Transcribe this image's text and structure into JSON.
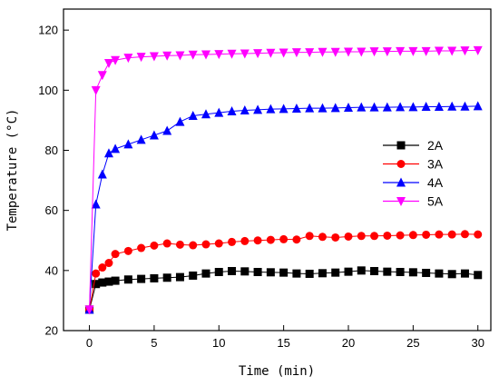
{
  "chart_data": {
    "type": "line",
    "title": "",
    "xlabel": "Time (min)",
    "ylabel": "Temperature (°C)",
    "xlim": [
      -2,
      31
    ],
    "ylim": [
      20,
      127
    ],
    "xticks": [
      0,
      5,
      10,
      15,
      20,
      25,
      30
    ],
    "yticks": [
      20,
      40,
      60,
      80,
      100,
      120
    ],
    "grid": false,
    "legend_position": "right-center",
    "series": [
      {
        "name": "2A",
        "color": "#000000",
        "marker": "square",
        "x": [
          0,
          0.5,
          1,
          1.5,
          2,
          3,
          4,
          5,
          6,
          7,
          8,
          9,
          10,
          11,
          12,
          13,
          14,
          15,
          16,
          17,
          18,
          19,
          20,
          21,
          22,
          23,
          24,
          25,
          26,
          27,
          28,
          29,
          30
        ],
        "y": [
          27,
          35.5,
          36,
          36.3,
          36.6,
          37,
          37.2,
          37.4,
          37.6,
          37.8,
          38.3,
          39,
          39.5,
          39.8,
          39.7,
          39.5,
          39.4,
          39.3,
          39,
          38.9,
          39.1,
          39.3,
          39.6,
          40,
          39.8,
          39.6,
          39.5,
          39.4,
          39.2,
          39,
          38.8,
          39,
          38.5
        ]
      },
      {
        "name": "3A",
        "color": "#ff0000",
        "marker": "circle",
        "x": [
          0,
          0.5,
          1,
          1.5,
          2,
          3,
          4,
          5,
          6,
          7,
          8,
          9,
          10,
          11,
          12,
          13,
          14,
          15,
          16,
          17,
          18,
          19,
          20,
          21,
          22,
          23,
          24,
          25,
          26,
          27,
          28,
          29,
          30
        ],
        "y": [
          27,
          39,
          41,
          42.5,
          45.5,
          46.5,
          47.5,
          48.3,
          49,
          48.6,
          48.4,
          48.7,
          49,
          49.5,
          49.8,
          50,
          50.2,
          50.4,
          50.3,
          51.5,
          51.2,
          51,
          51.3,
          51.5,
          51.5,
          51.6,
          51.7,
          51.8,
          51.9,
          52,
          52,
          52.1,
          52
        ]
      },
      {
        "name": "4A",
        "color": "#0000ff",
        "marker": "triangle-up",
        "x": [
          0,
          0.5,
          1,
          1.5,
          2,
          3,
          4,
          5,
          6,
          7,
          8,
          9,
          10,
          11,
          12,
          13,
          14,
          15,
          16,
          17,
          18,
          19,
          20,
          21,
          22,
          23,
          24,
          25,
          26,
          27,
          28,
          29,
          30
        ],
        "y": [
          27,
          62,
          72,
          79,
          80.5,
          82,
          83.5,
          85,
          86.5,
          89.5,
          91.5,
          92,
          92.5,
          93,
          93.3,
          93.5,
          93.7,
          93.8,
          93.9,
          94,
          94,
          94.1,
          94.2,
          94.3,
          94.3,
          94.3,
          94.4,
          94.4,
          94.5,
          94.5,
          94.6,
          94.6,
          94.7
        ]
      },
      {
        "name": "5A",
        "color": "#ff00ff",
        "marker": "triangle-down",
        "x": [
          0,
          0.5,
          1,
          1.5,
          2,
          3,
          4,
          5,
          6,
          7,
          8,
          9,
          10,
          11,
          12,
          13,
          14,
          15,
          16,
          17,
          18,
          19,
          20,
          21,
          22,
          23,
          24,
          25,
          26,
          27,
          28,
          29,
          30
        ],
        "y": [
          27,
          100,
          105,
          109,
          110,
          110.8,
          111.1,
          111.3,
          111.5,
          111.6,
          111.8,
          111.9,
          112,
          112.1,
          112.2,
          112.3,
          112.4,
          112.5,
          112.6,
          112.6,
          112.7,
          112.7,
          112.8,
          112.8,
          112.9,
          112.9,
          113,
          113,
          113,
          113.1,
          113.1,
          113.2,
          113.3
        ]
      }
    ]
  }
}
